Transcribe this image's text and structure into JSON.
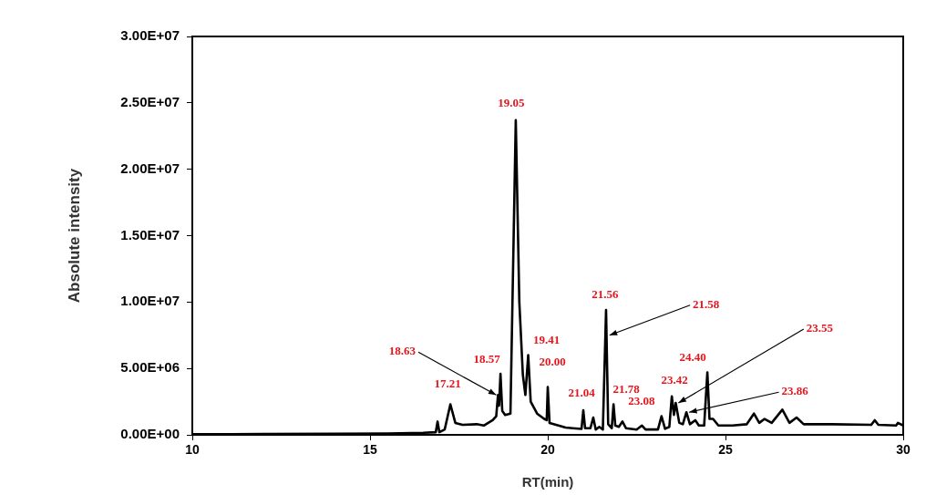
{
  "chart_data": {
    "type": "line",
    "xlabel": "RT(min)",
    "ylabel": "Absolute intensity",
    "xlim": [
      10,
      30
    ],
    "xticks": [
      10,
      15,
      20,
      25,
      30
    ],
    "ylim": [
      0,
      30000000
    ],
    "yticks": [
      {
        "value": 0,
        "label": "0.00E+00"
      },
      {
        "value": 5000000,
        "label": "5.00E+06"
      },
      {
        "value": 10000000,
        "label": "1.00E+07"
      },
      {
        "value": 15000000,
        "label": "1.50E+07"
      },
      {
        "value": 20000000,
        "label": "2.00E+07"
      },
      {
        "value": 25000000,
        "label": "2.50E+07"
      },
      {
        "value": 30000000,
        "label": "3.00E+07"
      }
    ],
    "grid": false,
    "legend": false,
    "marker": "none",
    "line_style": "solid",
    "series": [
      {
        "color": "#000000",
        "x": [
          10,
          12,
          14,
          15.5,
          16.5,
          16.85,
          16.9,
          16.95,
          17.1,
          17.26,
          17.4,
          17.6,
          18.0,
          18.2,
          18.45,
          18.55,
          18.6,
          18.63,
          18.67,
          18.72,
          18.8,
          18.95,
          19.1,
          19.2,
          19.3,
          19.37,
          19.45,
          19.52,
          19.7,
          19.9,
          19.97,
          20.0,
          20.05,
          20.3,
          20.5,
          20.7,
          20.95,
          21.0,
          21.05,
          21.2,
          21.28,
          21.35,
          21.45,
          21.55,
          21.64,
          21.7,
          21.8,
          21.85,
          21.9,
          22.0,
          22.1,
          22.2,
          22.5,
          22.65,
          22.75,
          23.1,
          23.2,
          23.3,
          23.42,
          23.49,
          23.55,
          23.6,
          23.7,
          23.8,
          23.9,
          24.0,
          24.15,
          24.25,
          24.4,
          24.49,
          24.55,
          24.65,
          24.8,
          25.2,
          25.6,
          25.8,
          25.95,
          26.1,
          26.3,
          26.6,
          26.8,
          27.0,
          27.2,
          28,
          29.1,
          29.2,
          29.3,
          29.8,
          29.85,
          30
        ],
        "values": [
          50000,
          60000,
          80000,
          100000,
          150000,
          200000,
          1000000,
          200000,
          400000,
          2300000,
          900000,
          750000,
          800000,
          700000,
          1100000,
          1400000,
          3000000,
          2200000,
          4600000,
          1800000,
          1500000,
          1600000,
          23700000,
          10000000,
          4500000,
          3000000,
          6000000,
          2500000,
          1600000,
          1200000,
          1100000,
          3600000,
          900000,
          700000,
          550000,
          500000,
          450000,
          1850000,
          500000,
          500000,
          1300000,
          400000,
          600000,
          400000,
          9400000,
          800000,
          500000,
          2300000,
          700000,
          600000,
          1000000,
          500000,
          400000,
          700000,
          400000,
          400000,
          1400000,
          450000,
          600000,
          2900000,
          1500000,
          2400000,
          900000,
          800000,
          1700000,
          800000,
          1100000,
          700000,
          700000,
          4700000,
          1200000,
          1200000,
          700000,
          700000,
          800000,
          1600000,
          900000,
          1200000,
          900000,
          1900000,
          900000,
          1300000,
          800000,
          800000,
          750000,
          1100000,
          750000,
          700000,
          900000,
          700000
        ]
      }
    ],
    "annotations": [
      {
        "text": "18.63",
        "x": 18.6,
        "y": 3000000
      },
      {
        "text": "18.57",
        "x": 18.67,
        "y": 4600000
      },
      {
        "text": "17.21",
        "x": 17.26,
        "y": 2300000
      },
      {
        "text": "19.05",
        "x": 19.1,
        "y": 23700000
      },
      {
        "text": "19.41",
        "x": 19.45,
        "y": 6000000
      },
      {
        "text": "20.00",
        "x": 20.0,
        "y": 3600000
      },
      {
        "text": "21.04",
        "x": 21.0,
        "y": 1850000
      },
      {
        "text": "21.56",
        "x": 21.64,
        "y": 9400000
      },
      {
        "text": "21.58",
        "x": 21.66,
        "y": 7500000
      },
      {
        "text": "21.78",
        "x": 21.85,
        "y": 2300000
      },
      {
        "text": "23.08",
        "x": 23.2,
        "y": 1400000
      },
      {
        "text": "23.42",
        "x": 23.49,
        "y": 2900000
      },
      {
        "text": "23.55",
        "x": 23.6,
        "y": 2400000
      },
      {
        "text": "24.40",
        "x": 24.49,
        "y": 4700000
      },
      {
        "text": "23.86",
        "x": 23.9,
        "y": 1700000
      }
    ]
  }
}
